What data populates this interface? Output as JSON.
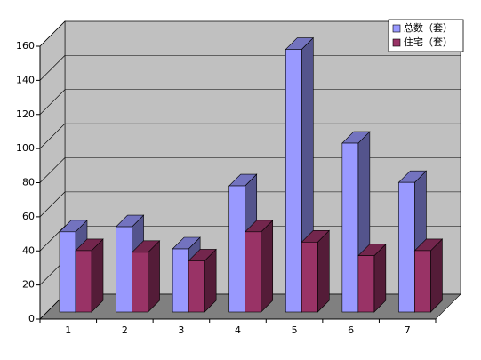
{
  "chart_data": {
    "type": "bar3d",
    "categories": [
      "1",
      "2",
      "3",
      "4",
      "5",
      "6",
      "7"
    ],
    "series": [
      {
        "name": "总数（套）",
        "color": "#9999ff",
        "values": [
          47,
          50,
          37,
          74,
          154,
          99,
          76
        ]
      },
      {
        "name": "住宅（套）",
        "color": "#993366",
        "values": [
          36,
          35,
          30,
          47,
          41,
          33,
          36
        ]
      }
    ],
    "ylim": [
      0,
      160
    ],
    "yticks": [
      0,
      20,
      40,
      60,
      80,
      100,
      120,
      140,
      160
    ],
    "grid": true,
    "legend": "top-right"
  }
}
